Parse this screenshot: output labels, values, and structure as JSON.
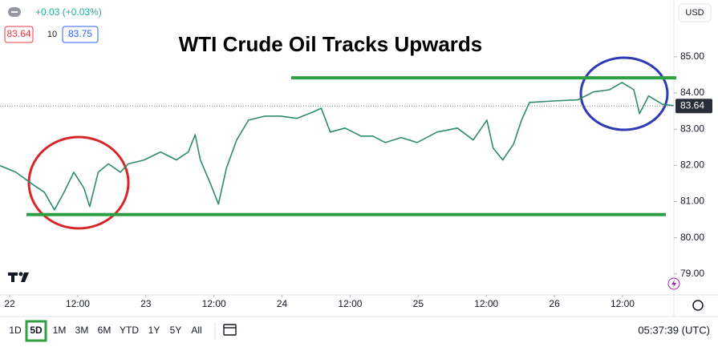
{
  "chart_data": {
    "type": "line",
    "title": "WTI Crude Oil Tracks Upwards",
    "x": [
      -1.7,
      1.1,
      4.0,
      6.1,
      7.9,
      9.6,
      11.3,
      13.1,
      14.1,
      15.6,
      17.4,
      19.5,
      20.9,
      23.7,
      26.6,
      29.4,
      31.5,
      32.7,
      33.6,
      35.3,
      36.8,
      38.2,
      40.0,
      42.1,
      45.0,
      47.8,
      50.6,
      53.4,
      54.9,
      56.5,
      59.1,
      61.9,
      64.0,
      66.2,
      69.0,
      71.8,
      75.3,
      78.9,
      81.7,
      84.1,
      85.2,
      86.9,
      88.8,
      90.2,
      91.6,
      95.8,
      100.1,
      102.9,
      105.7,
      107.9,
      110.0,
      111.0,
      112.6,
      115.0,
      117.0
    ],
    "values": [
      81.99,
      81.81,
      81.48,
      81.26,
      80.77,
      81.26,
      81.81,
      81.37,
      80.86,
      81.81,
      82.04,
      81.81,
      82.04,
      82.15,
      82.37,
      82.15,
      82.37,
      82.85,
      82.15,
      81.53,
      80.93,
      81.92,
      82.7,
      83.25,
      83.36,
      83.36,
      83.3,
      83.47,
      83.58,
      82.92,
      83.03,
      82.81,
      82.81,
      82.63,
      82.77,
      82.63,
      82.92,
      83.03,
      82.7,
      83.25,
      82.48,
      82.15,
      82.59,
      83.25,
      83.74,
      83.78,
      83.81,
      84.03,
      84.09,
      84.29,
      84.09,
      83.43,
      83.92,
      83.69,
      83.65
    ],
    "color": "#2e8b6a",
    "xlim": [
      -1.7,
      117.05
    ],
    "xticks": [
      {
        "value": 0,
        "label": "22"
      },
      {
        "value": 12,
        "label": "12:00"
      },
      {
        "value": 24,
        "label": "23"
      },
      {
        "value": 36,
        "label": "12:00"
      },
      {
        "value": 48,
        "label": "24"
      },
      {
        "value": 60,
        "label": "12:00"
      },
      {
        "value": 72,
        "label": "25"
      },
      {
        "value": 84,
        "label": "12:00"
      },
      {
        "value": 96,
        "label": "26"
      },
      {
        "value": 108,
        "label": "12:00"
      }
    ],
    "ylim": [
      78.42,
      86.57
    ],
    "yticks": [
      {
        "value": 79,
        "label": "79.00"
      },
      {
        "value": 80,
        "label": "80.00"
      },
      {
        "value": 81,
        "label": "81.00"
      },
      {
        "value": 82,
        "label": "82.00"
      },
      {
        "value": 83,
        "label": "83.00"
      },
      {
        "value": 84,
        "label": "84.00"
      },
      {
        "value": 85,
        "label": "85.00"
      }
    ],
    "last_value": 83.64,
    "levels": [
      {
        "value": 84.42,
        "color": "#2ea043"
      },
      {
        "value": 80.64,
        "color": "#2ea043"
      }
    ],
    "currency": "USD"
  },
  "header": {
    "change": "+0.03 (+0.03%)",
    "bid": "83.64",
    "spread": "10",
    "ask": "83.75"
  },
  "toolbar": {
    "ranges": [
      "1D",
      "5D",
      "1M",
      "3M",
      "6M",
      "YTD",
      "1Y",
      "5Y",
      "All"
    ],
    "clock": "05:37:39 (UTC)"
  }
}
